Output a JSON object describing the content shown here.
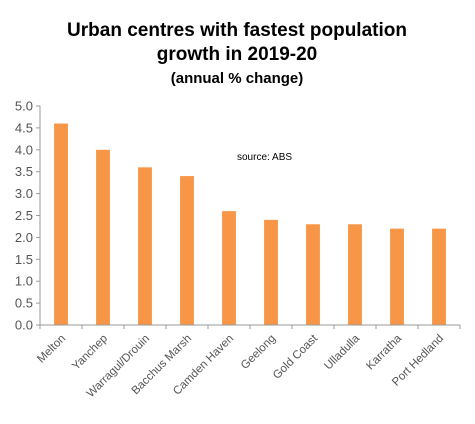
{
  "chart_data": {
    "type": "bar",
    "title_line1": "Urban centres with fastest population",
    "title_line2": "growth in 2019-20",
    "subtitle": "(annual % change)",
    "annotation": "source:  ABS",
    "categories": [
      "Melton",
      "Yanchep",
      "Warragul/Drouin",
      "Bacchus Marsh",
      "Camden Haven",
      "Geelong",
      "Gold Coast",
      "Ulladulla",
      "Karratha",
      "Port Hedland"
    ],
    "values": [
      4.6,
      4.0,
      3.6,
      3.4,
      2.6,
      2.4,
      2.3,
      2.3,
      2.2,
      2.2
    ],
    "ylim": [
      0,
      5
    ],
    "yticks": [
      "0.0",
      "0.5",
      "1.0",
      "1.5",
      "2.0",
      "2.5",
      "3.0",
      "3.5",
      "4.0",
      "4.5",
      "5.0"
    ],
    "bar_color": "#F79646",
    "xlabel": "",
    "ylabel": "",
    "grid": false
  }
}
